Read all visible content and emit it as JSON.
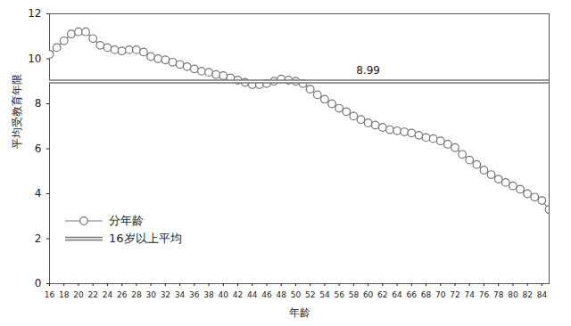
{
  "chart_data": {
    "type": "line",
    "x_label": "年龄",
    "y_label": "平均受教育年限",
    "x": [
      16,
      17,
      18,
      19,
      20,
      21,
      22,
      23,
      24,
      25,
      26,
      27,
      28,
      29,
      30,
      31,
      32,
      33,
      34,
      35,
      36,
      37,
      38,
      39,
      40,
      41,
      42,
      43,
      44,
      45,
      46,
      47,
      48,
      49,
      50,
      51,
      52,
      53,
      54,
      55,
      56,
      57,
      58,
      59,
      60,
      61,
      62,
      63,
      64,
      65,
      66,
      67,
      68,
      69,
      70,
      71,
      72,
      73,
      74,
      75,
      76,
      77,
      78,
      79,
      80,
      81,
      82,
      83,
      84,
      85
    ],
    "series": [
      {
        "name": "分年龄",
        "color": "#777777",
        "marker": "circle",
        "values": [
          10.2,
          10.5,
          10.8,
          11.1,
          11.2,
          11.2,
          10.9,
          10.6,
          10.5,
          10.4,
          10.35,
          10.4,
          10.4,
          10.3,
          10.1,
          10.0,
          9.95,
          9.85,
          9.75,
          9.65,
          9.55,
          9.45,
          9.4,
          9.3,
          9.25,
          9.15,
          9.05,
          8.95,
          8.85,
          8.85,
          8.9,
          9.0,
          9.1,
          9.05,
          9.0,
          8.9,
          8.65,
          8.4,
          8.2,
          8.0,
          7.8,
          7.65,
          7.45,
          7.3,
          7.15,
          7.05,
          6.95,
          6.85,
          6.8,
          6.75,
          6.7,
          6.6,
          6.5,
          6.45,
          6.35,
          6.2,
          6.05,
          5.75,
          5.5,
          5.3,
          5.05,
          4.85,
          4.65,
          4.5,
          4.35,
          4.2,
          4.0,
          3.85,
          3.7,
          3.3
        ]
      },
      {
        "name": "16岁以上平均",
        "color": "#777777",
        "line_style": "double",
        "values": [
          8.99,
          8.99,
          8.99,
          8.99,
          8.99,
          8.99,
          8.99,
          8.99,
          8.99,
          8.99,
          8.99,
          8.99,
          8.99,
          8.99,
          8.99,
          8.99,
          8.99,
          8.99,
          8.99,
          8.99,
          8.99,
          8.99,
          8.99,
          8.99,
          8.99,
          8.99,
          8.99,
          8.99,
          8.99,
          8.99,
          8.99,
          8.99,
          8.99,
          8.99,
          8.99,
          8.99,
          8.99,
          8.99,
          8.99,
          8.99,
          8.99,
          8.99,
          8.99,
          8.99,
          8.99,
          8.99,
          8.99,
          8.99,
          8.99,
          8.99,
          8.99,
          8.99,
          8.99,
          8.99,
          8.99,
          8.99,
          8.99,
          8.99,
          8.99,
          8.99,
          8.99,
          8.99,
          8.99,
          8.99,
          8.99,
          8.99,
          8.99,
          8.99,
          8.99,
          8.99
        ]
      }
    ],
    "annotations": [
      {
        "text": "8.99",
        "x": 60,
        "y": 8.99
      }
    ],
    "xlim": [
      16,
      85
    ],
    "xticks": [
      16,
      18,
      20,
      22,
      24,
      26,
      28,
      30,
      32,
      34,
      36,
      38,
      40,
      42,
      44,
      46,
      48,
      50,
      52,
      54,
      56,
      58,
      60,
      62,
      64,
      66,
      68,
      70,
      72,
      74,
      76,
      78,
      80,
      82,
      84
    ],
    "ylim": [
      0,
      12
    ],
    "yticks": [
      0,
      2,
      4,
      6,
      8,
      10,
      12
    ],
    "grid": false,
    "legend": "lower left"
  }
}
